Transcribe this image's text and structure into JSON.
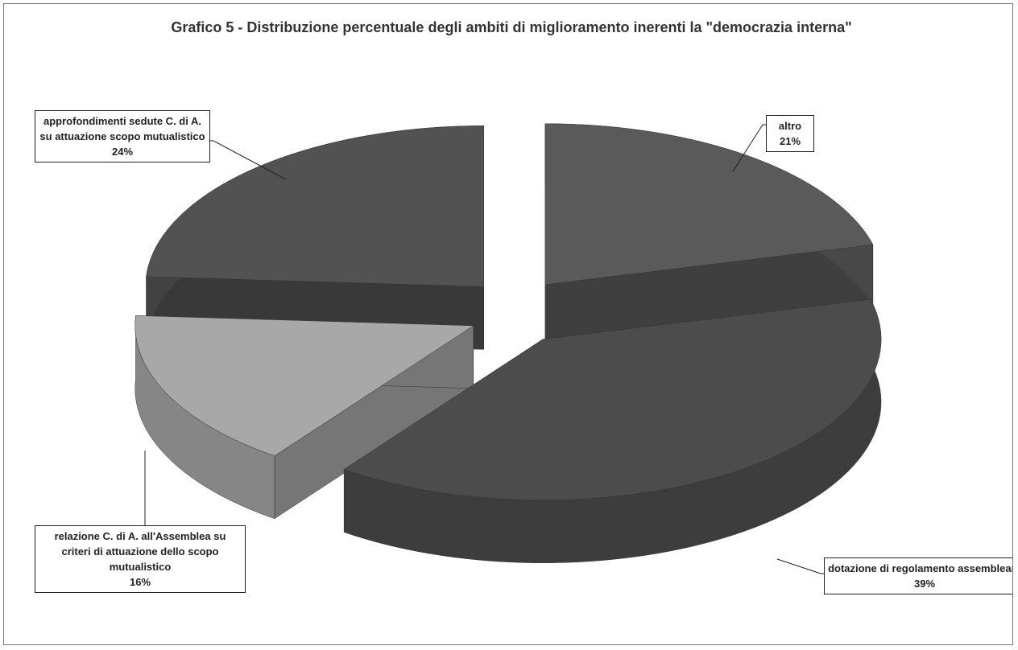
{
  "chart_data": {
    "type": "pie",
    "title": "Grafico 5 - Distribuzione  percentuale degli ambiti di miglioramento inerenti la \"democrazia interna\"",
    "categories": [
      "altro",
      "dotazione di regolamento assembleare",
      "relazione C. di A. all'Assemblea su criteri di attuazione dello scopo mutualistico",
      "approfondimenti sedute C. di A. su attuazione scopo mutualistico"
    ],
    "values": [
      21,
      39,
      16,
      24
    ],
    "value_labels": [
      "21%",
      "39%",
      "16%",
      "24%"
    ],
    "colors": [
      "#5a5a5a",
      "#4c4c4c",
      "#a8a8a8",
      "#525252"
    ]
  }
}
